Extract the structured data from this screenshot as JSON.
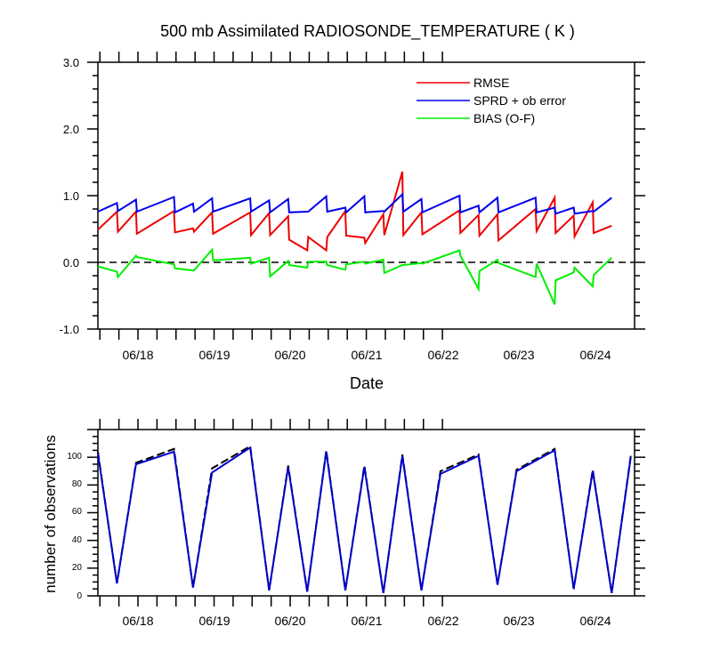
{
  "chart_data": [
    {
      "type": "line",
      "title": "500 mb Assimilated RADIOSONDE_TEMPERATURE ( K )",
      "xlabel": "Date",
      "ylabel": "",
      "x_ticks": [
        "06/18",
        "06/19",
        "06/20",
        "06/21",
        "06/22",
        "06/23",
        "06/24"
      ],
      "xlim": [
        0,
        28.2
      ],
      "ylim": [
        -1.0,
        3.0
      ],
      "y_ticks": [
        "3.0",
        "2.0",
        "1.0",
        "0.0",
        "-1.0"
      ],
      "y_tick_values": [
        3.0,
        2.0,
        1.0,
        0.0,
        -1.0
      ],
      "reference_line": 0,
      "legend": [
        "RMSE",
        "SPRD + ob error",
        "BIAS (O-F)"
      ],
      "colors": {
        "RMSE": "#ee0000",
        "SPRD + ob error": "#0000ee",
        "BIAS (O-F)": "#00ee00",
        "reference": "#000000"
      },
      "series": [
        {
          "name": "RMSE",
          "points": [
            [
              0,
              0.49
            ],
            [
              1,
              0.76
            ],
            [
              1.05,
              0.46
            ],
            [
              2,
              0.76
            ],
            [
              2.05,
              0.43
            ],
            [
              4,
              0.77
            ],
            [
              4.05,
              0.45
            ],
            [
              5,
              0.51
            ],
            [
              5.05,
              0.46
            ],
            [
              6,
              0.75
            ],
            [
              6.05,
              0.43
            ],
            [
              8,
              0.75
            ],
            [
              8.05,
              0.41
            ],
            [
              9,
              0.74
            ],
            [
              9.05,
              0.41
            ],
            [
              10,
              0.69
            ],
            [
              10.05,
              0.34
            ],
            [
              11,
              0.18
            ],
            [
              11.05,
              0.38
            ],
            [
              12,
              0.18
            ],
            [
              12.05,
              0.38
            ],
            [
              13,
              0.77
            ],
            [
              13.05,
              0.4
            ],
            [
              14,
              0.37
            ],
            [
              14.05,
              0.29
            ],
            [
              15,
              0.72
            ],
            [
              15.05,
              0.41
            ],
            [
              16,
              1.36
            ],
            [
              16.05,
              0.41
            ],
            [
              17,
              0.75
            ],
            [
              17.05,
              0.42
            ],
            [
              19,
              0.78
            ],
            [
              19.05,
              0.44
            ],
            [
              20,
              0.71
            ],
            [
              20.05,
              0.4
            ],
            [
              21,
              0.72
            ],
            [
              21.05,
              0.33
            ],
            [
              23,
              0.8
            ],
            [
              23.05,
              0.47
            ],
            [
              24,
              0.97
            ],
            [
              24.05,
              0.44
            ],
            [
              25,
              0.7
            ],
            [
              25.05,
              0.39
            ],
            [
              26,
              0.9
            ],
            [
              26.05,
              0.44
            ],
            [
              27,
              0.55
            ]
          ]
        },
        {
          "name": "SPRD + ob error",
          "points": [
            [
              0,
              0.76
            ],
            [
              1,
              0.89
            ],
            [
              1.05,
              0.77
            ],
            [
              2,
              0.94
            ],
            [
              2.05,
              0.76
            ],
            [
              4,
              0.98
            ],
            [
              4.05,
              0.75
            ],
            [
              5,
              0.88
            ],
            [
              5.05,
              0.76
            ],
            [
              6,
              0.96
            ],
            [
              6.05,
              0.76
            ],
            [
              8,
              0.96
            ],
            [
              8.05,
              0.76
            ],
            [
              9,
              0.93
            ],
            [
              9.05,
              0.75
            ],
            [
              10,
              0.95
            ],
            [
              10.05,
              0.75
            ],
            [
              11,
              0.76
            ],
            [
              11.05,
              0.76
            ],
            [
              12,
              0.99
            ],
            [
              12.05,
              0.76
            ],
            [
              13,
              0.82
            ],
            [
              13.05,
              0.75
            ],
            [
              14,
              0.99
            ],
            [
              14.05,
              0.75
            ],
            [
              15,
              0.77
            ],
            [
              15.05,
              0.76
            ],
            [
              16,
              1.02
            ],
            [
              16.05,
              0.76
            ],
            [
              17,
              0.95
            ],
            [
              17.05,
              0.75
            ],
            [
              19,
              1.0
            ],
            [
              19.05,
              0.75
            ],
            [
              20,
              0.85
            ],
            [
              20.05,
              0.75
            ],
            [
              21,
              0.97
            ],
            [
              21.05,
              0.75
            ],
            [
              23,
              0.97
            ],
            [
              23.05,
              0.75
            ],
            [
              24,
              0.82
            ],
            [
              24.05,
              0.73
            ],
            [
              25,
              0.82
            ],
            [
              25.05,
              0.73
            ],
            [
              26,
              0.77
            ],
            [
              26.05,
              0.76
            ],
            [
              27,
              0.97
            ]
          ]
        },
        {
          "name": "BIAS (O-F)",
          "points": [
            [
              0,
              -0.06
            ],
            [
              1,
              -0.14
            ],
            [
              1.05,
              -0.22
            ],
            [
              2,
              0.1
            ],
            [
              2.05,
              0.08
            ],
            [
              4,
              -0.03
            ],
            [
              4.05,
              -0.09
            ],
            [
              5,
              -0.12
            ],
            [
              5.05,
              -0.12
            ],
            [
              6,
              0.19
            ],
            [
              6.05,
              0.03
            ],
            [
              8,
              0.07
            ],
            [
              8.05,
              -0.02
            ],
            [
              9,
              0.07
            ],
            [
              9.05,
              -0.21
            ],
            [
              10,
              0.02
            ],
            [
              10.05,
              -0.04
            ],
            [
              11,
              -0.08
            ],
            [
              11.05,
              0.01
            ],
            [
              12,
              0.01
            ],
            [
              12.05,
              -0.04
            ],
            [
              13,
              -0.11
            ],
            [
              13.05,
              -0.03
            ],
            [
              14,
              0.01
            ],
            [
              14.05,
              -0.02
            ],
            [
              15,
              0.04
            ],
            [
              15.05,
              -0.16
            ],
            [
              16,
              -0.04
            ],
            [
              16.05,
              -0.04
            ],
            [
              17,
              -0.01
            ],
            [
              17.05,
              -0.02
            ],
            [
              19,
              0.18
            ],
            [
              19.05,
              0.1
            ],
            [
              20,
              -0.4
            ],
            [
              20.05,
              -0.13
            ],
            [
              21,
              0.04
            ],
            [
              21.05,
              -0.01
            ],
            [
              23,
              -0.22
            ],
            [
              23.05,
              -0.02
            ],
            [
              24,
              -0.63
            ],
            [
              24.05,
              -0.27
            ],
            [
              25,
              -0.15
            ],
            [
              25.05,
              -0.08
            ],
            [
              26,
              -0.36
            ],
            [
              26.05,
              -0.19
            ],
            [
              27,
              0.07
            ]
          ]
        }
      ]
    },
    {
      "type": "line",
      "title": "",
      "xlabel": "",
      "ylabel": "number of observations",
      "x_ticks": [
        "06/18",
        "06/19",
        "06/20",
        "06/21",
        "06/22",
        "06/23",
        "06/24"
      ],
      "xlim": [
        0,
        28.2
      ],
      "ylim": [
        0,
        120
      ],
      "y_ticks": [
        "100",
        "80",
        "60",
        "40",
        "20",
        "0"
      ],
      "y_tick_values": [
        100,
        80,
        60,
        40,
        20,
        0
      ],
      "colors": {
        "assimilated": "#0000cc",
        "total": "#000000"
      },
      "series": [
        {
          "name": "assimilated",
          "points": [
            [
              0,
              103
            ],
            [
              1,
              9
            ],
            [
              2,
              95
            ],
            [
              4,
              104
            ],
            [
              5,
              6
            ],
            [
              6,
              89
            ],
            [
              8,
              107
            ],
            [
              9,
              4
            ],
            [
              10,
              93
            ],
            [
              11,
              3
            ],
            [
              12,
              104
            ],
            [
              13,
              4
            ],
            [
              14,
              93
            ],
            [
              15,
              2
            ],
            [
              16,
              101
            ],
            [
              17,
              4
            ],
            [
              18,
              88
            ],
            [
              20,
              101
            ],
            [
              21,
              8
            ],
            [
              22,
              90
            ],
            [
              24,
              105
            ],
            [
              25,
              5
            ],
            [
              26,
              90
            ],
            [
              27,
              2
            ],
            [
              28,
              100
            ]
          ]
        },
        {
          "name": "total",
          "points": [
            [
              0,
              104
            ],
            [
              1,
              9
            ],
            [
              2,
              96
            ],
            [
              4,
              106
            ],
            [
              5,
              6
            ],
            [
              6,
              92
            ],
            [
              8,
              108
            ],
            [
              9,
              4
            ],
            [
              10,
              94
            ],
            [
              11,
              3
            ],
            [
              12,
              105
            ],
            [
              13,
              4
            ],
            [
              14,
              94
            ],
            [
              15,
              2
            ],
            [
              16,
              102
            ],
            [
              17,
              4
            ],
            [
              18,
              90
            ],
            [
              20,
              102
            ],
            [
              21,
              8
            ],
            [
              22,
              91
            ],
            [
              24,
              106
            ],
            [
              25,
              5
            ],
            [
              26,
              91
            ],
            [
              27,
              2
            ],
            [
              28,
              101
            ]
          ]
        }
      ]
    }
  ]
}
